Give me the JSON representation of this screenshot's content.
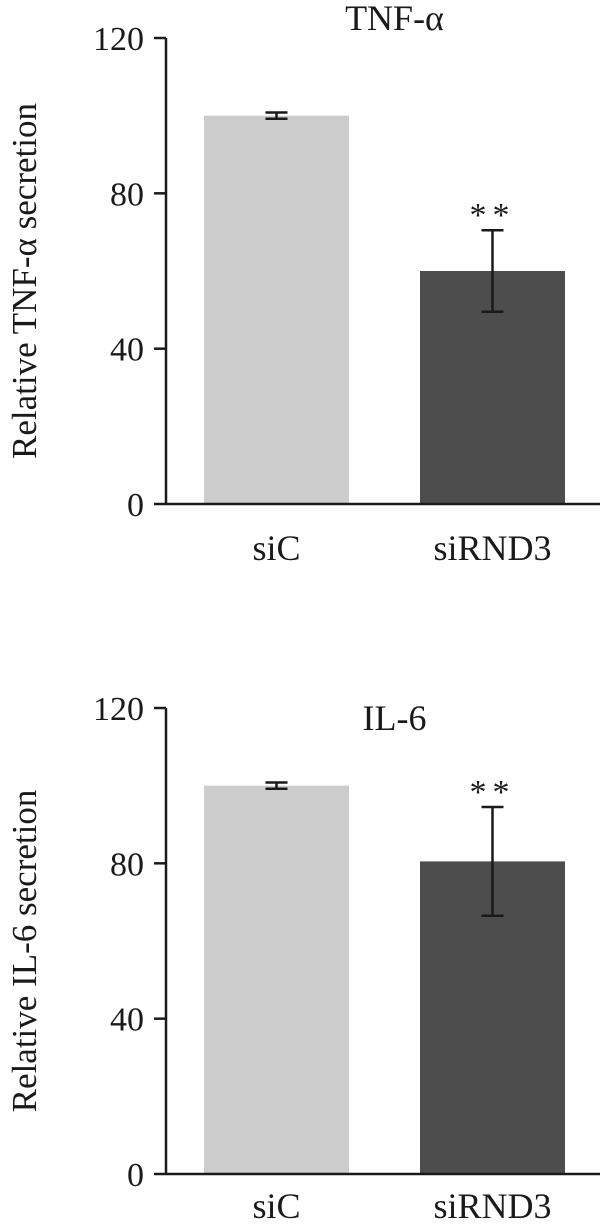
{
  "chart_data": [
    {
      "type": "bar",
      "title": "TNF-α",
      "ylabel": "Relative TNF-α secretion",
      "xlabel": "",
      "categories": [
        "siC",
        "siRND3"
      ],
      "values": [
        100,
        60
      ],
      "errors": [
        0.8,
        10.5
      ],
      "colors": [
        "#cccccc",
        "#4d4d4d"
      ],
      "annotations": [
        "",
        "**"
      ],
      "ylim": [
        0,
        120
      ],
      "yticks": [
        0,
        40,
        80,
        120
      ],
      "grid": false,
      "legend": "none"
    },
    {
      "type": "bar",
      "title": "IL-6",
      "ylabel": "Relative IL-6 secretion",
      "xlabel": "",
      "categories": [
        "siC",
        "siRND3"
      ],
      "values": [
        100,
        80.5
      ],
      "errors": [
        0.8,
        14
      ],
      "colors": [
        "#cccccc",
        "#4d4d4d"
      ],
      "annotations": [
        "",
        "**"
      ],
      "ylim": [
        0,
        120
      ],
      "yticks": [
        0,
        40,
        80,
        120
      ],
      "grid": false,
      "legend": "none"
    }
  ]
}
